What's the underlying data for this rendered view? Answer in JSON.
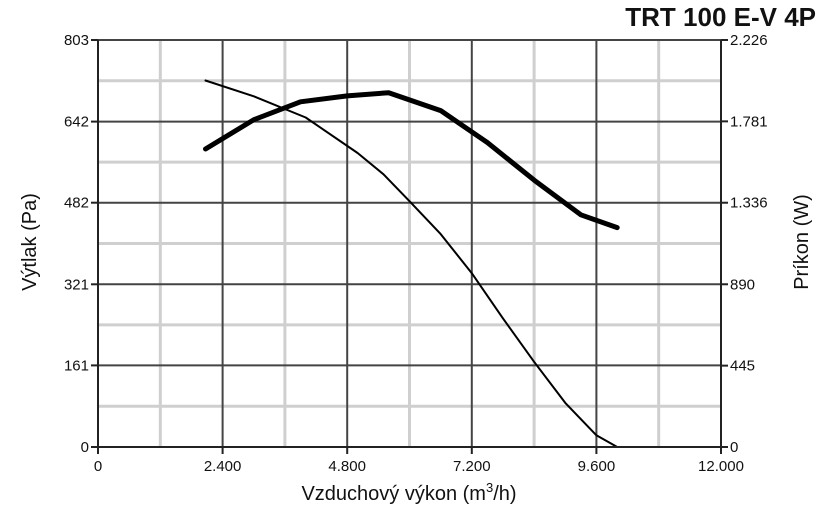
{
  "chart_data": {
    "type": "line",
    "title": "TRT 100 E-V 4P",
    "xlabel": "Vzduchový výkon (m3/h)",
    "xlabel_parts": {
      "main": "Vzduchový výkon (m",
      "sup": "3",
      "end": "/h)"
    },
    "ylabel": "Výtlak (Pa)",
    "y2label": "Príkon (W)",
    "xlim": [
      0,
      12000
    ],
    "ylim": [
      0,
      803
    ],
    "y2lim": [
      0,
      2226
    ],
    "x_ticks": [
      0,
      2400,
      4800,
      7200,
      9600,
      12000
    ],
    "x_tick_labels": [
      "0",
      "2.400",
      "4.800",
      "7.200",
      "9.600",
      "12.000"
    ],
    "y_ticks": [
      0,
      161,
      321,
      482,
      642,
      803
    ],
    "y_tick_labels": [
      "0",
      "161",
      "321",
      "482",
      "642",
      "803"
    ],
    "y2_ticks": [
      0,
      445,
      890,
      1336,
      1781,
      2226
    ],
    "y2_tick_labels": [
      "0",
      "445",
      "890",
      "1.336",
      "1.781",
      "2.226"
    ],
    "grid": true,
    "minor_grid": true,
    "series": [
      {
        "role": "pressure",
        "axis": "left",
        "style": "thin",
        "x": [
          2070,
          3000,
          4000,
          5000,
          5500,
          6000,
          6600,
          7200,
          7800,
          8400,
          9000,
          9600,
          10000
        ],
        "y": [
          723,
          692,
          650,
          580,
          538,
          485,
          420,
          343,
          254,
          168,
          87,
          23,
          0
        ]
      },
      {
        "role": "power",
        "axis": "right",
        "style": "thick",
        "x": [
          2070,
          3000,
          3900,
          4800,
          5600,
          6600,
          7500,
          8400,
          9300,
          10000
        ],
        "y": [
          1630,
          1790,
          1888,
          1920,
          1938,
          1840,
          1665,
          1460,
          1270,
          1200
        ]
      }
    ]
  }
}
